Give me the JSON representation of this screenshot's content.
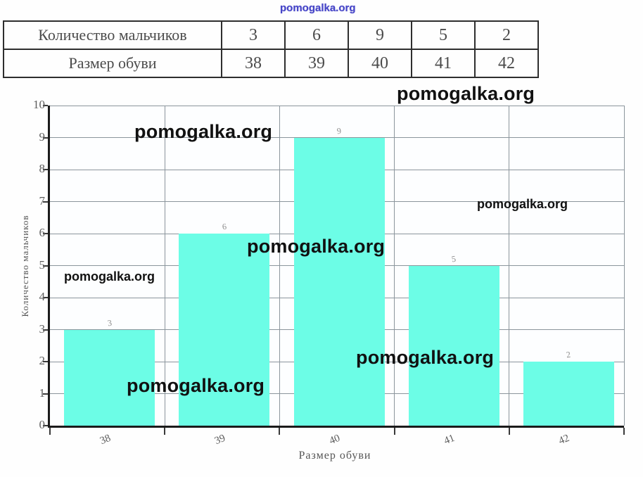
{
  "watermark": {
    "text": "pomogalka.org"
  },
  "table": {
    "rows": [
      {
        "label": "Количество мальчиков",
        "values": [
          "3",
          "6",
          "9",
          "5",
          "2"
        ]
      },
      {
        "label": "Размер обуви",
        "values": [
          "38",
          "39",
          "40",
          "41",
          "42"
        ]
      }
    ]
  },
  "chart_data": {
    "type": "bar",
    "categories": [
      "38",
      "39",
      "40",
      "41",
      "42"
    ],
    "values": [
      3,
      6,
      9,
      5,
      2
    ],
    "bar_labels": [
      "3",
      "6",
      "9",
      "5",
      "2"
    ],
    "title": "",
    "xlabel": "Размер обуви",
    "ylabel": "Количество мальчиков",
    "ylim": [
      0,
      10
    ],
    "yticks": [
      0,
      1,
      2,
      3,
      4,
      5,
      6,
      7,
      8,
      9,
      10
    ],
    "grid": true,
    "legend": false,
    "bar_color": "#6cfde6",
    "grid_color": "#8b959c",
    "axis_color": "#1b1b1b",
    "tick_label_color": "#5e5e5e"
  }
}
